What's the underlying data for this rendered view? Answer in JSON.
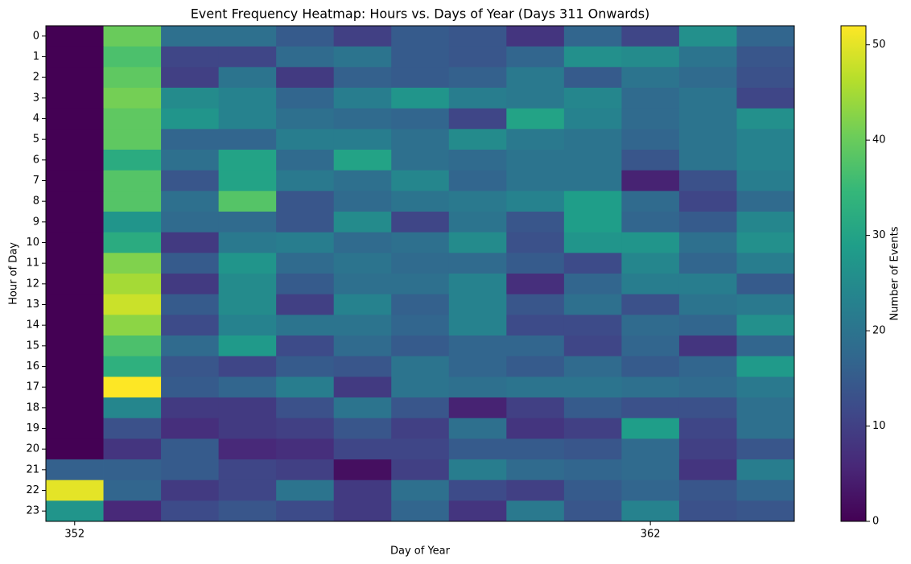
{
  "chart_data": {
    "type": "heatmap",
    "title": "Event Frequency Heatmap: Hours vs. Days of Year (Days 311 Onwards)",
    "x_label": "Day of Year",
    "y_label": "Hour of Day",
    "x": [
      352,
      353,
      354,
      355,
      356,
      357,
      358,
      359,
      360,
      361,
      362,
      363,
      364
    ],
    "xlim": [
      351.5,
      364.5
    ],
    "xticks": [
      352,
      362
    ],
    "y": [
      0,
      1,
      2,
      3,
      4,
      5,
      6,
      7,
      8,
      9,
      10,
      11,
      12,
      13,
      14,
      15,
      16,
      17,
      18,
      19,
      20,
      21,
      22,
      23
    ],
    "ylim": [
      23.5,
      -0.5
    ],
    "yticks": [
      0,
      1,
      2,
      3,
      4,
      5,
      6,
      7,
      8,
      9,
      10,
      11,
      12,
      13,
      14,
      15,
      16,
      17,
      18,
      19,
      20,
      21,
      22,
      23
    ],
    "colormap": "viridis",
    "colorbar": {
      "label": "Number of Events",
      "lim": [
        0,
        52
      ],
      "ticks": [
        0,
        10,
        20,
        30,
        40,
        50
      ]
    },
    "z": [
      [
        0,
        40,
        19,
        19,
        15,
        10,
        15,
        14,
        8,
        17,
        11,
        26,
        17
      ],
      [
        0,
        37,
        11,
        11,
        18,
        20,
        15,
        14,
        17,
        26,
        25,
        20,
        14
      ],
      [
        0,
        39,
        10,
        20,
        9,
        16,
        15,
        16,
        21,
        15,
        20,
        18,
        13
      ],
      [
        0,
        41,
        25,
        23,
        17,
        22,
        27,
        22,
        21,
        24,
        18,
        20,
        11
      ],
      [
        0,
        39,
        27,
        23,
        19,
        18,
        17,
        11,
        30,
        23,
        18,
        20,
        26
      ],
      [
        0,
        39,
        17,
        17,
        22,
        22,
        19,
        25,
        21,
        20,
        17,
        20,
        23
      ],
      [
        0,
        32,
        19,
        30,
        18,
        30,
        19,
        18,
        20,
        20,
        14,
        20,
        23
      ],
      [
        0,
        38,
        14,
        30,
        21,
        19,
        24,
        17,
        20,
        20,
        5,
        13,
        22
      ],
      [
        0,
        38,
        19,
        38,
        14,
        18,
        20,
        21,
        23,
        29,
        18,
        11,
        18
      ],
      [
        0,
        27,
        18,
        18,
        14,
        25,
        11,
        20,
        14,
        29,
        17,
        15,
        24
      ],
      [
        0,
        32,
        9,
        21,
        22,
        18,
        19,
        25,
        13,
        27,
        27,
        19,
        26
      ],
      [
        0,
        42,
        15,
        27,
        18,
        20,
        18,
        18,
        15,
        12,
        24,
        17,
        22
      ],
      [
        0,
        45,
        9,
        25,
        15,
        19,
        19,
        23,
        7,
        17,
        22,
        22,
        15
      ],
      [
        0,
        48,
        15,
        25,
        10,
        23,
        16,
        23,
        14,
        19,
        13,
        20,
        21
      ],
      [
        0,
        43,
        12,
        23,
        20,
        20,
        17,
        23,
        12,
        12,
        18,
        17,
        26
      ],
      [
        0,
        37,
        18,
        28,
        12,
        18,
        15,
        17,
        17,
        11,
        17,
        8,
        17
      ],
      [
        0,
        33,
        14,
        11,
        15,
        14,
        20,
        17,
        15,
        18,
        15,
        17,
        28
      ],
      [
        0,
        52,
        15,
        17,
        22,
        9,
        20,
        19,
        20,
        20,
        19,
        18,
        21
      ],
      [
        0,
        24,
        9,
        9,
        13,
        20,
        14,
        5,
        10,
        15,
        13,
        13,
        19
      ],
      [
        0,
        13,
        7,
        9,
        10,
        14,
        10,
        19,
        8,
        10,
        29,
        11,
        19
      ],
      [
        0,
        8,
        15,
        6,
        7,
        11,
        11,
        15,
        15,
        14,
        18,
        10,
        14
      ],
      [
        16,
        16,
        15,
        11,
        10,
        2,
        10,
        22,
        18,
        17,
        18,
        8,
        22
      ],
      [
        50,
        17,
        9,
        11,
        20,
        9,
        19,
        12,
        10,
        15,
        17,
        14,
        17
      ],
      [
        27,
        6,
        12,
        14,
        12,
        9,
        17,
        8,
        21,
        14,
        23,
        13,
        14
      ]
    ]
  }
}
